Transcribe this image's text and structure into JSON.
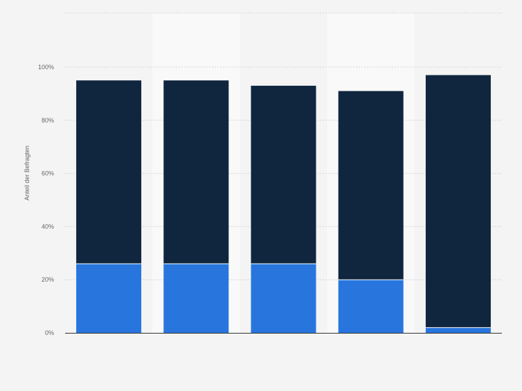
{
  "chart_data": {
    "type": "bar",
    "stacked": true,
    "title": "",
    "xlabel": "",
    "ylabel": "Anteil der Befragten",
    "categories": [
      "",
      "",
      "",
      "",
      ""
    ],
    "ylim": [
      0,
      100
    ],
    "yticks": [
      {
        "value": 0,
        "label": "0%"
      },
      {
        "value": 20,
        "label": "20%"
      },
      {
        "value": 40,
        "label": "40%"
      },
      {
        "value": 60,
        "label": "60%"
      },
      {
        "value": 80,
        "label": "80%"
      },
      {
        "value": 100,
        "label": "100%"
      }
    ],
    "grid": true,
    "legend": "none",
    "series": [
      {
        "values": [
          26,
          26,
          26,
          20,
          2
        ],
        "color": "#2876dd"
      },
      {
        "values": [
          69,
          69,
          67,
          71,
          95
        ],
        "color": "#0f263e"
      }
    ],
    "totals": [
      95,
      95,
      93,
      91,
      97
    ],
    "colors": {
      "background": "#f4f4f4",
      "band": "#f9f9f9",
      "grid": "#d4d4d4",
      "axis": "#333333",
      "tick_label": "#666666",
      "segment_border": "#ffffff"
    }
  }
}
